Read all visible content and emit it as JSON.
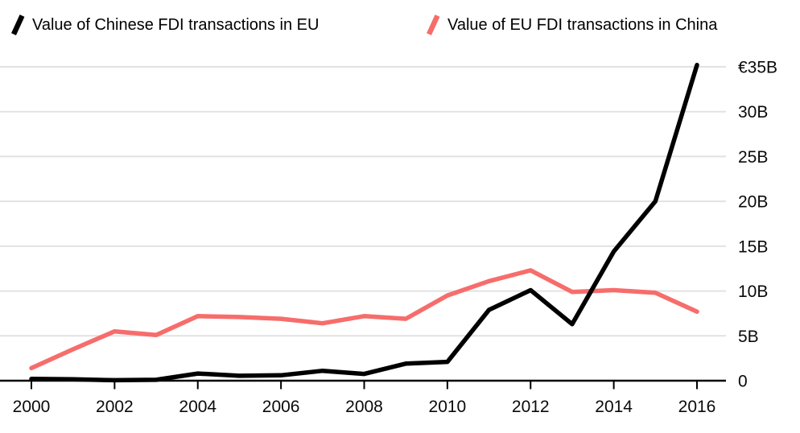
{
  "legend": {
    "items": [
      {
        "label": "Value of Chinese FDI transactions in EU",
        "color": "#000000"
      },
      {
        "label": "Value of EU FDI transactions in China",
        "color": "#f66d6b"
      }
    ]
  },
  "chart_data": {
    "type": "line",
    "title": "",
    "xlabel": "",
    "ylabel": "",
    "x": [
      2000,
      2001,
      2002,
      2003,
      2004,
      2005,
      2006,
      2007,
      2008,
      2009,
      2010,
      2011,
      2012,
      2013,
      2014,
      2015,
      2016
    ],
    "series": [
      {
        "name": "Value of Chinese FDI transactions in EU",
        "color": "#000000",
        "values": [
          0.2,
          0.15,
          0.05,
          0.1,
          0.8,
          0.55,
          0.6,
          1.1,
          0.75,
          1.9,
          2.1,
          7.9,
          10.1,
          6.3,
          14.4,
          20.0,
          35.2
        ]
      },
      {
        "name": "Value of EU FDI transactions in China",
        "color": "#f66d6b",
        "values": [
          1.4,
          3.5,
          5.5,
          5.1,
          7.2,
          7.1,
          6.9,
          6.4,
          7.2,
          6.9,
          9.5,
          11.1,
          12.3,
          9.9,
          10.1,
          9.8,
          7.7
        ]
      }
    ],
    "xticks": {
      "values": [
        2000,
        2002,
        2004,
        2006,
        2008,
        2010,
        2012,
        2014,
        2016
      ],
      "labels": [
        "2000",
        "2002",
        "2004",
        "2006",
        "2008",
        "2010",
        "2012",
        "2014",
        "2016"
      ]
    },
    "yticks": [
      {
        "value": 0,
        "label": "0"
      },
      {
        "value": 5,
        "label": "5B"
      },
      {
        "value": 10,
        "label": "10B"
      },
      {
        "value": 15,
        "label": "15B"
      },
      {
        "value": 20,
        "label": "20B"
      },
      {
        "value": 25,
        "label": "25B"
      },
      {
        "value": 30,
        "label": "30B"
      },
      {
        "value": 35,
        "label": "€35B"
      }
    ],
    "xlim": [
      2000,
      2016
    ],
    "ylim": [
      0,
      35.5
    ],
    "grid": "horizontal",
    "legend_position": "top",
    "gridline_color": "#e2e2e2",
    "axis_color": "#000000",
    "unit": "€B"
  }
}
